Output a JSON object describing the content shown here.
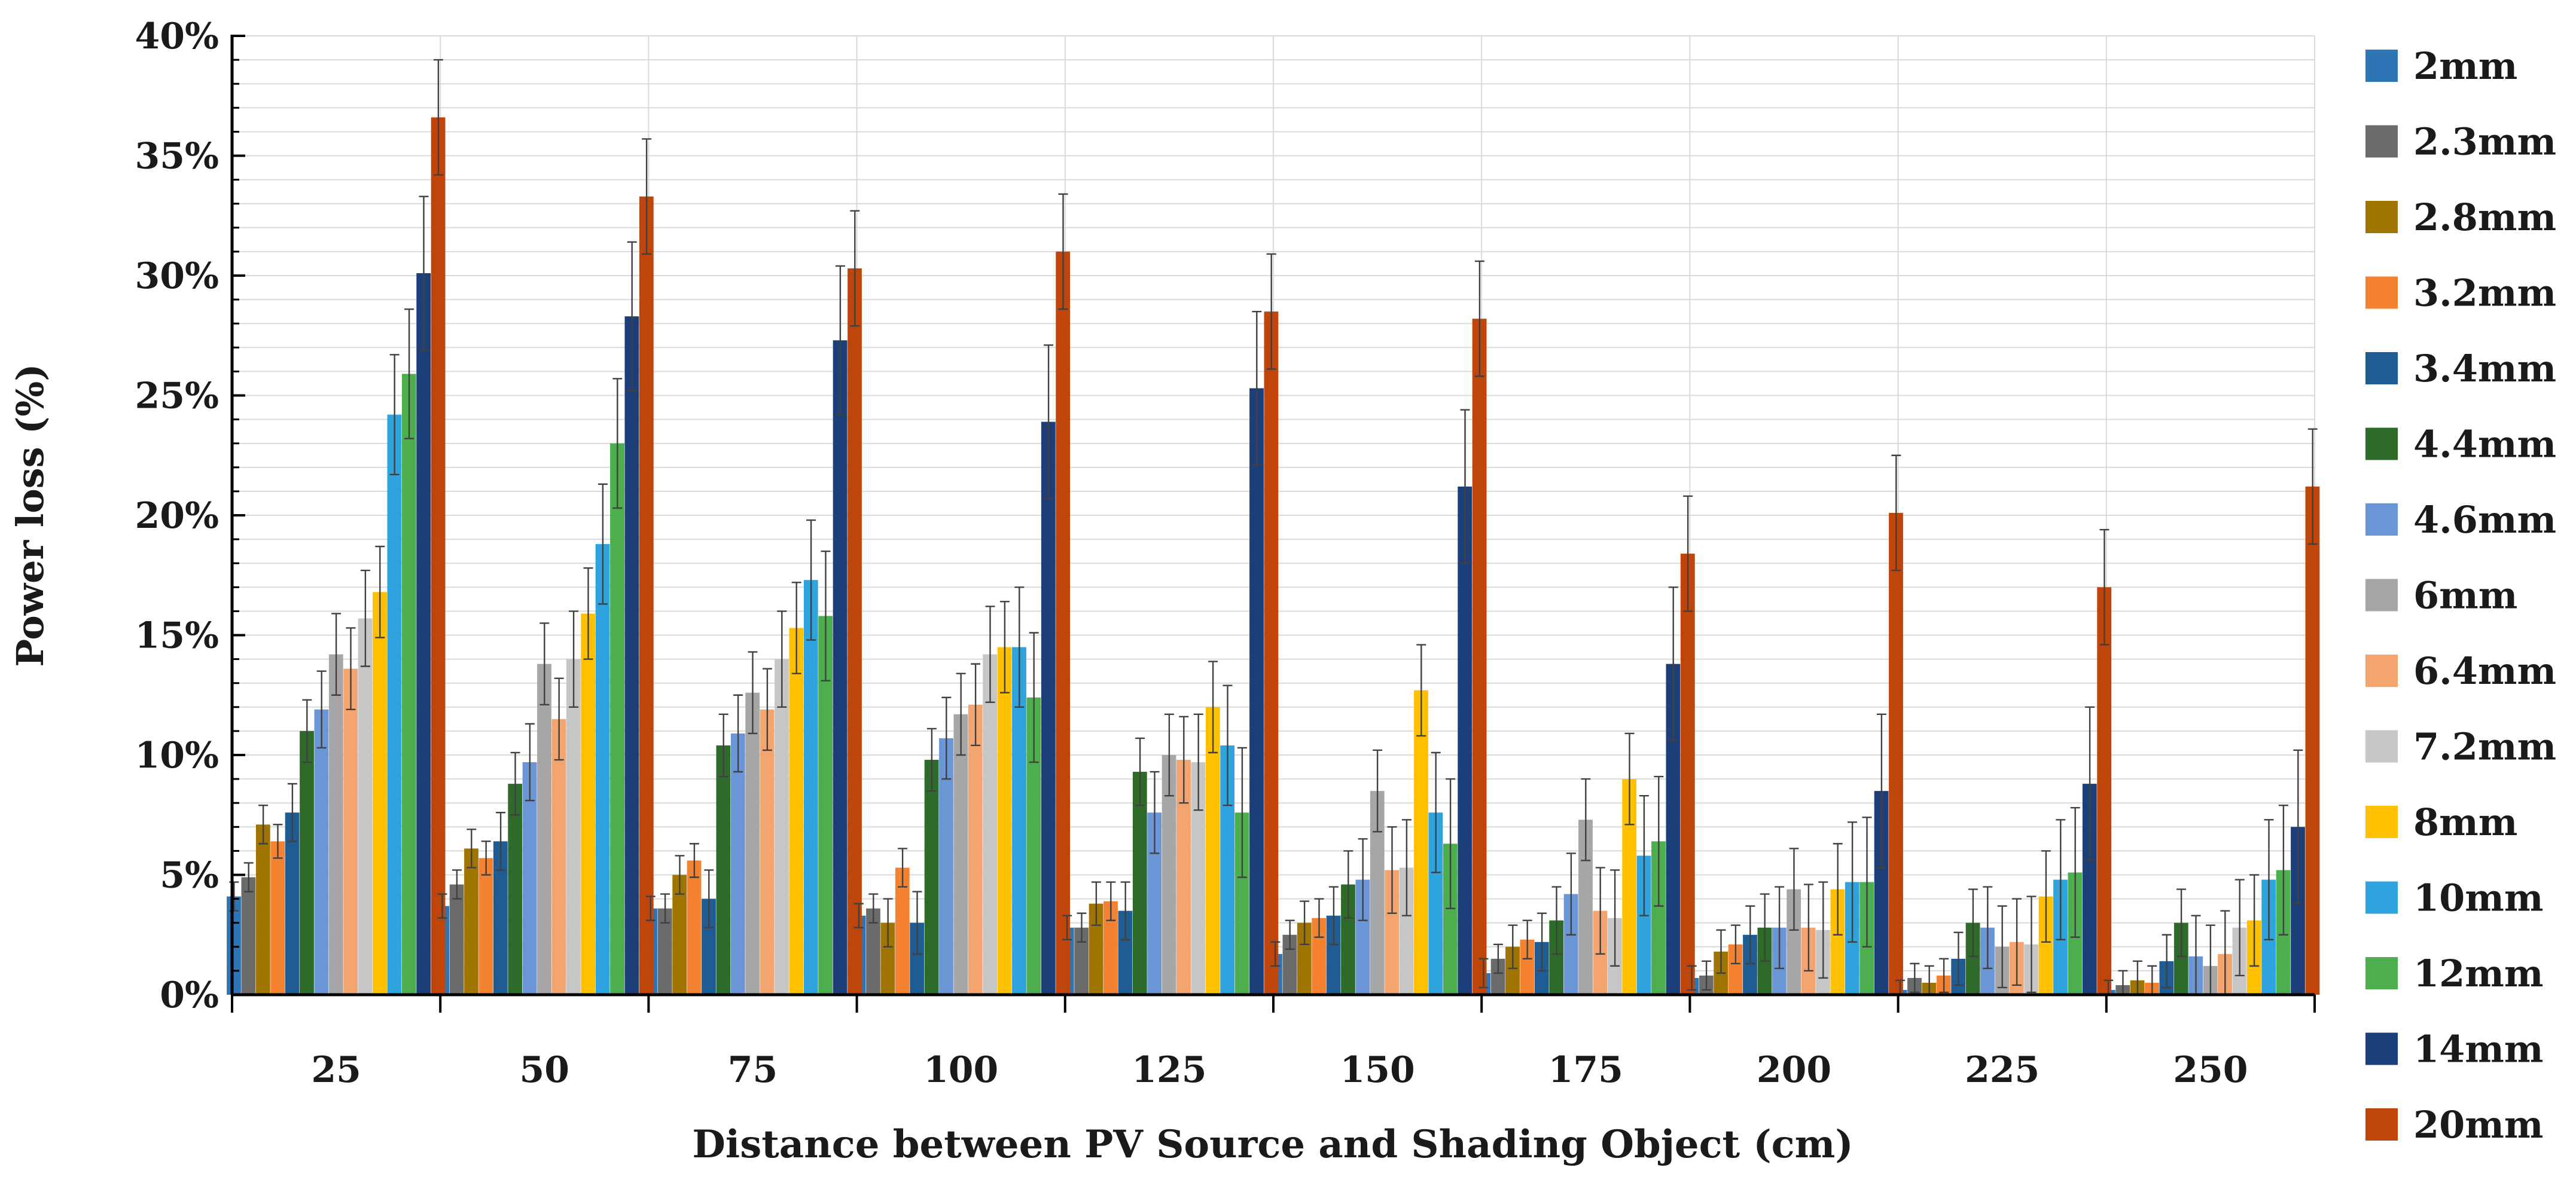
{
  "chart_data": {
    "type": "bar",
    "title": "",
    "xlabel": "Distance between PV Source and Shading Object (cm)",
    "ylabel": "Power loss (%)",
    "ylim": [
      0,
      40
    ],
    "yticks": [
      "0%",
      "5%",
      "10%",
      "15%",
      "20%",
      "25%",
      "30%",
      "35%",
      "40%"
    ],
    "grid": true,
    "legend_position": "right",
    "error_bars": true,
    "categories": [
      "25",
      "50",
      "75",
      "100",
      "125",
      "150",
      "175",
      "200",
      "225",
      "250"
    ],
    "series": [
      {
        "name": "2mm",
        "color": "#2e75b6",
        "values": [
          4.1,
          3.7,
          3.6,
          3.3,
          2.8,
          1.7,
          0.9,
          0.7,
          0.2,
          0.2
        ],
        "errors": [
          0.6,
          0.5,
          0.5,
          0.5,
          0.5,
          0.5,
          0.6,
          0.5,
          0.4,
          0.4
        ]
      },
      {
        "name": "2.3mm",
        "color": "#6b6b6b",
        "values": [
          4.9,
          4.6,
          3.6,
          3.6,
          2.8,
          2.5,
          1.5,
          0.8,
          0.7,
          0.4
        ],
        "errors": [
          0.6,
          0.6,
          0.6,
          0.6,
          0.6,
          0.6,
          0.6,
          0.6,
          0.6,
          0.6
        ]
      },
      {
        "name": "2.8mm",
        "color": "#a07400",
        "values": [
          7.1,
          6.1,
          5.0,
          3.0,
          3.8,
          3.0,
          2.0,
          1.8,
          0.5,
          0.6
        ],
        "errors": [
          0.8,
          0.8,
          0.8,
          1.0,
          0.9,
          0.9,
          0.9,
          0.9,
          0.7,
          0.8
        ]
      },
      {
        "name": "3.2mm",
        "color": "#f58231",
        "values": [
          6.4,
          5.7,
          5.6,
          5.3,
          3.9,
          3.2,
          2.3,
          2.1,
          0.8,
          0.5
        ],
        "errors": [
          0.7,
          0.7,
          0.7,
          0.8,
          0.8,
          0.8,
          0.8,
          0.8,
          0.7,
          0.7
        ]
      },
      {
        "name": "3.4mm",
        "color": "#1f5c93",
        "values": [
          7.6,
          6.4,
          4.0,
          3.0,
          3.5,
          3.3,
          2.2,
          2.5,
          1.5,
          1.4
        ],
        "errors": [
          1.2,
          1.2,
          1.2,
          1.3,
          1.2,
          1.2,
          1.2,
          1.2,
          1.1,
          1.1
        ]
      },
      {
        "name": "4.4mm",
        "color": "#2e6b2a",
        "values": [
          11.0,
          8.8,
          10.4,
          9.8,
          9.3,
          4.6,
          3.1,
          2.8,
          3.0,
          3.0
        ],
        "errors": [
          1.3,
          1.3,
          1.3,
          1.3,
          1.4,
          1.4,
          1.4,
          1.4,
          1.4,
          1.4
        ]
      },
      {
        "name": "4.6mm",
        "color": "#6a96d6",
        "values": [
          11.9,
          9.7,
          10.9,
          10.7,
          7.6,
          4.8,
          4.2,
          2.8,
          2.8,
          1.6
        ],
        "errors": [
          1.6,
          1.6,
          1.6,
          1.7,
          1.7,
          1.7,
          1.7,
          1.7,
          1.7,
          1.7
        ]
      },
      {
        "name": "6mm",
        "color": "#a6a6a6",
        "values": [
          14.2,
          13.8,
          12.6,
          11.7,
          10.0,
          8.5,
          7.3,
          4.4,
          2.0,
          1.2
        ],
        "errors": [
          1.7,
          1.7,
          1.7,
          1.7,
          1.7,
          1.7,
          1.7,
          1.7,
          1.7,
          1.7
        ]
      },
      {
        "name": "6.4mm",
        "color": "#f4a46e",
        "values": [
          13.6,
          11.5,
          11.9,
          12.1,
          9.8,
          5.2,
          3.5,
          2.8,
          2.2,
          1.7
        ],
        "errors": [
          1.7,
          1.7,
          1.7,
          1.7,
          1.8,
          1.8,
          1.8,
          1.8,
          1.8,
          1.8
        ]
      },
      {
        "name": "7.2mm",
        "color": "#c6c6c6",
        "values": [
          15.7,
          14.0,
          14.0,
          14.2,
          9.7,
          5.3,
          3.2,
          2.7,
          2.1,
          2.8
        ],
        "errors": [
          2.0,
          2.0,
          2.0,
          2.0,
          2.0,
          2.0,
          2.0,
          2.0,
          2.0,
          2.0
        ]
      },
      {
        "name": "8mm",
        "color": "#ffc000",
        "values": [
          16.8,
          15.9,
          15.3,
          14.5,
          12.0,
          12.7,
          9.0,
          4.4,
          4.1,
          3.1
        ],
        "errors": [
          1.9,
          1.9,
          1.9,
          1.9,
          1.9,
          1.9,
          1.9,
          1.9,
          1.9,
          1.9
        ]
      },
      {
        "name": "10mm",
        "color": "#2ea3de",
        "values": [
          24.2,
          18.8,
          17.3,
          14.5,
          10.4,
          7.6,
          5.8,
          4.7,
          4.8,
          4.8
        ],
        "errors": [
          2.5,
          2.5,
          2.5,
          2.5,
          2.5,
          2.5,
          2.5,
          2.5,
          2.5,
          2.5
        ]
      },
      {
        "name": "12mm",
        "color": "#4cae4c",
        "values": [
          25.9,
          23.0,
          15.8,
          12.4,
          7.6,
          6.3,
          6.4,
          4.7,
          5.1,
          5.2
        ],
        "errors": [
          2.7,
          2.7,
          2.7,
          2.7,
          2.7,
          2.7,
          2.7,
          2.7,
          2.7,
          2.7
        ]
      },
      {
        "name": "14mm",
        "color": "#1c3f7a",
        "values": [
          30.1,
          28.3,
          27.3,
          23.9,
          25.3,
          21.2,
          13.8,
          8.5,
          8.8,
          7.0
        ],
        "errors": [
          3.2,
          3.1,
          3.1,
          3.2,
          3.2,
          3.2,
          3.2,
          3.2,
          3.2,
          3.2
        ]
      },
      {
        "name": "20mm",
        "color": "#c0450a",
        "values": [
          36.6,
          33.3,
          30.3,
          31.0,
          28.5,
          28.2,
          18.4,
          20.1,
          17.0,
          21.2
        ],
        "errors": [
          2.4,
          2.4,
          2.4,
          2.4,
          2.4,
          2.4,
          2.4,
          2.4,
          2.4,
          2.4
        ]
      }
    ]
  }
}
